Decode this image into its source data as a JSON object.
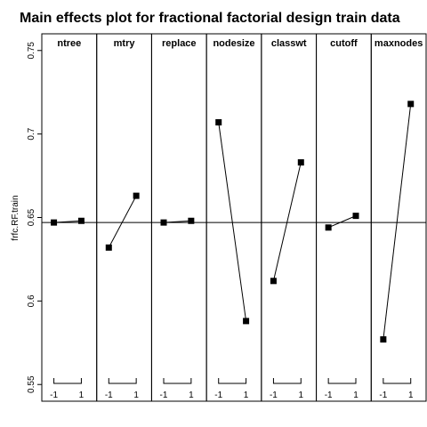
{
  "chart_data": {
    "type": "line",
    "title": "Main effects plot for fractional factorial design train data",
    "ylabel": "frfc.RF.train",
    "ylim": [
      0.54,
      0.76
    ],
    "yticks": [
      0.55,
      0.6,
      0.65,
      0.7,
      0.75
    ],
    "ytick_labels": [
      "0.55",
      "0.6",
      "0.65",
      "0.7",
      "0.75"
    ],
    "x_levels": [
      "-1",
      "1"
    ],
    "grand_mean": 0.647,
    "grid": false,
    "series": [
      {
        "name": "ntree",
        "x": [
          "-1",
          "1"
        ],
        "values": [
          0.647,
          0.648
        ]
      },
      {
        "name": "mtry",
        "x": [
          "-1",
          "1"
        ],
        "values": [
          0.632,
          0.663
        ]
      },
      {
        "name": "replace",
        "x": [
          "-1",
          "1"
        ],
        "values": [
          0.647,
          0.648
        ]
      },
      {
        "name": "nodesize",
        "x": [
          "-1",
          "1"
        ],
        "values": [
          0.707,
          0.588
        ]
      },
      {
        "name": "classwt",
        "x": [
          "-1",
          "1"
        ],
        "values": [
          0.612,
          0.683
        ]
      },
      {
        "name": "cutoff",
        "x": [
          "-1",
          "1"
        ],
        "values": [
          0.644,
          0.651
        ]
      },
      {
        "name": "maxnodes",
        "x": [
          "-1",
          "1"
        ],
        "values": [
          0.577,
          0.718
        ]
      }
    ]
  }
}
